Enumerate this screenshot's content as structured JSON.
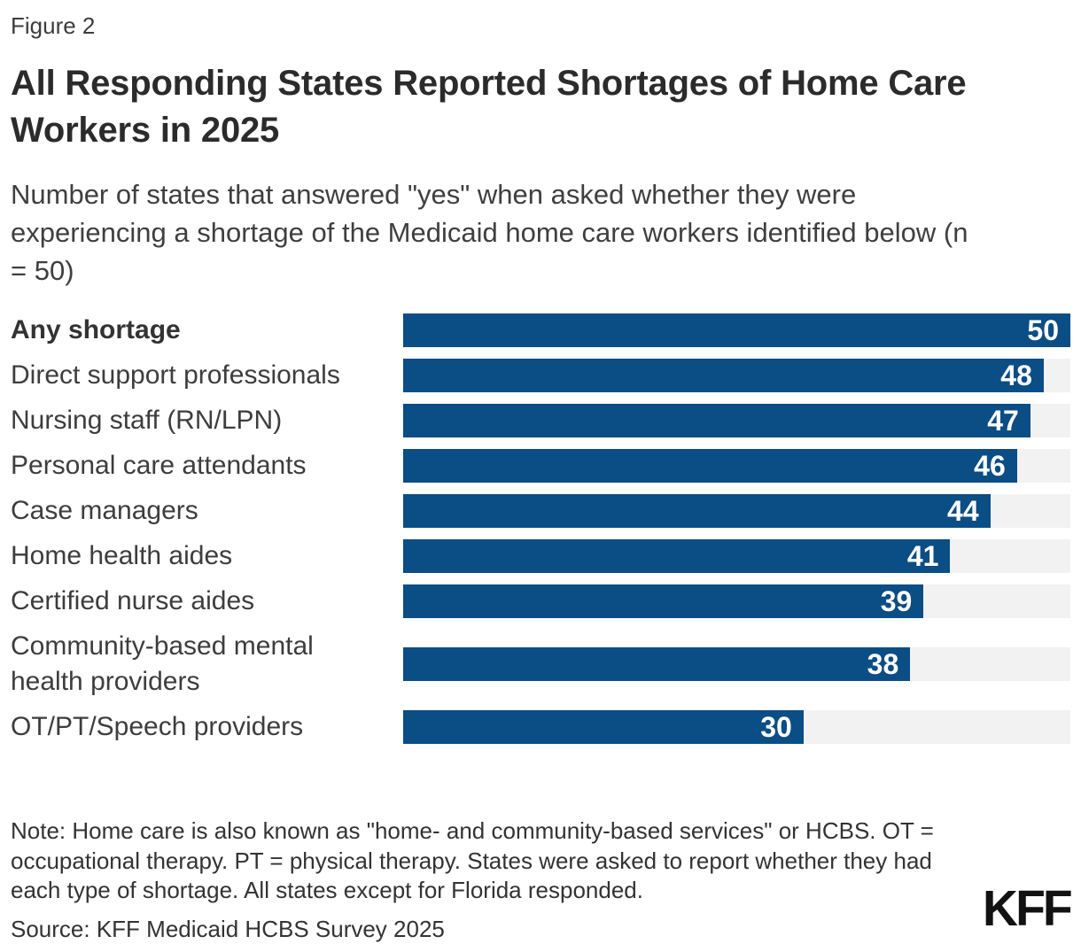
{
  "figure_label": "Figure 2",
  "header": {
    "title": "All Responding States Reported Shortages of Home Care Workers in 2025",
    "subtitle": "Number of states that answered \"yes\" when asked whether they were experiencing a shortage of the Medicaid home care workers identified below (n = 50)"
  },
  "chart_data": {
    "type": "bar",
    "orientation": "horizontal",
    "categories": [
      "Any shortage",
      "Direct support professionals",
      "Nursing staff (RN/LPN)",
      "Personal care attendants",
      "Case managers",
      "Home health aides",
      "Certified nurse aides",
      "Community-based mental health providers",
      "OT/PT/Speech providers"
    ],
    "values": [
      50,
      48,
      47,
      46,
      44,
      41,
      39,
      38,
      30
    ],
    "xlim": [
      0,
      50
    ],
    "value_labels_shown": true,
    "grid": false,
    "emphasized_category": "Any shortage",
    "colors": {
      "bar": "#0b4d85",
      "track": "#f2f2f2",
      "value_label": "#ffffff"
    }
  },
  "footer": {
    "note": "Note: Home care is also known as \"home- and community-based services\" or HCBS. OT = occupational therapy. PT = physical therapy. States were asked to report whether they had each type of shortage. All states except for Florida responded.",
    "source": "Source: KFF Medicaid HCBS Survey 2025",
    "logo_text": "KFF"
  }
}
